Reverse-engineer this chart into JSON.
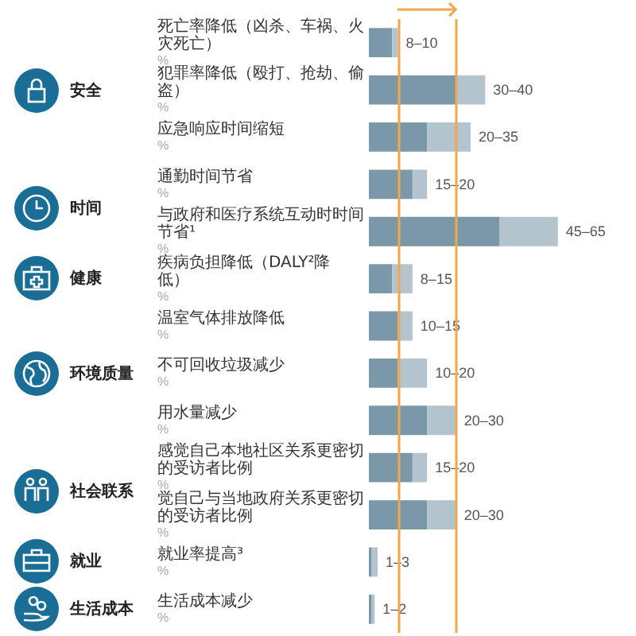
{
  "chart_data": {
    "type": "bar",
    "orientation": "horizontal",
    "stacked": true,
    "categories": [
      "死亡率降低（凶杀、车祸、火灾死亡）\n%",
      "犯罪率降低（殴打、抢劫、偷盗）\n%",
      "应急响应时间缩短\n%",
      "通勤时间节省\n%",
      "与政府和医疗系统互动时时间节省¹\n%",
      "疾病负担降低（DALY²降低）\n%",
      "温室气体排放降低\n%",
      "不可回收垃圾减少\n%",
      "用水量减少\n%",
      "感觉自己本地社区关系更密切的受访者比例\n%",
      "觉自己与当地政府关系更密切的受访者比例\n%",
      "就业率提高³\n%",
      "生活成本减少\n%"
    ],
    "series": [
      {
        "color": "#7b98a9",
        "values": [
          8,
          30,
          20,
          15,
          45,
          8,
          10,
          10,
          20,
          15,
          20,
          1,
          1
        ]
      },
      {
        "color": "#b4c4ce",
        "values": [
          2,
          10,
          15,
          5,
          20,
          7,
          5,
          10,
          10,
          5,
          10,
          2,
          1
        ],
        "value_labels": [
          "8–10",
          "30–40",
          "20–35",
          "15–20",
          "45–65",
          "8–15",
          "10–15",
          "10–20",
          "20–30",
          "15–20",
          "20–30",
          "1–3",
          "1–2"
        ]
      }
    ],
    "ref_lines": [
      {
        "axis": "x",
        "value": 10,
        "color": "#f0a848"
      },
      {
        "axis": "x",
        "value": 30,
        "color": "#f0a848"
      }
    ],
    "annotations": [
      "安全",
      "时间",
      "健康",
      "环境质量",
      "社会联系",
      "就业",
      "生活成本"
    ]
  }
}
